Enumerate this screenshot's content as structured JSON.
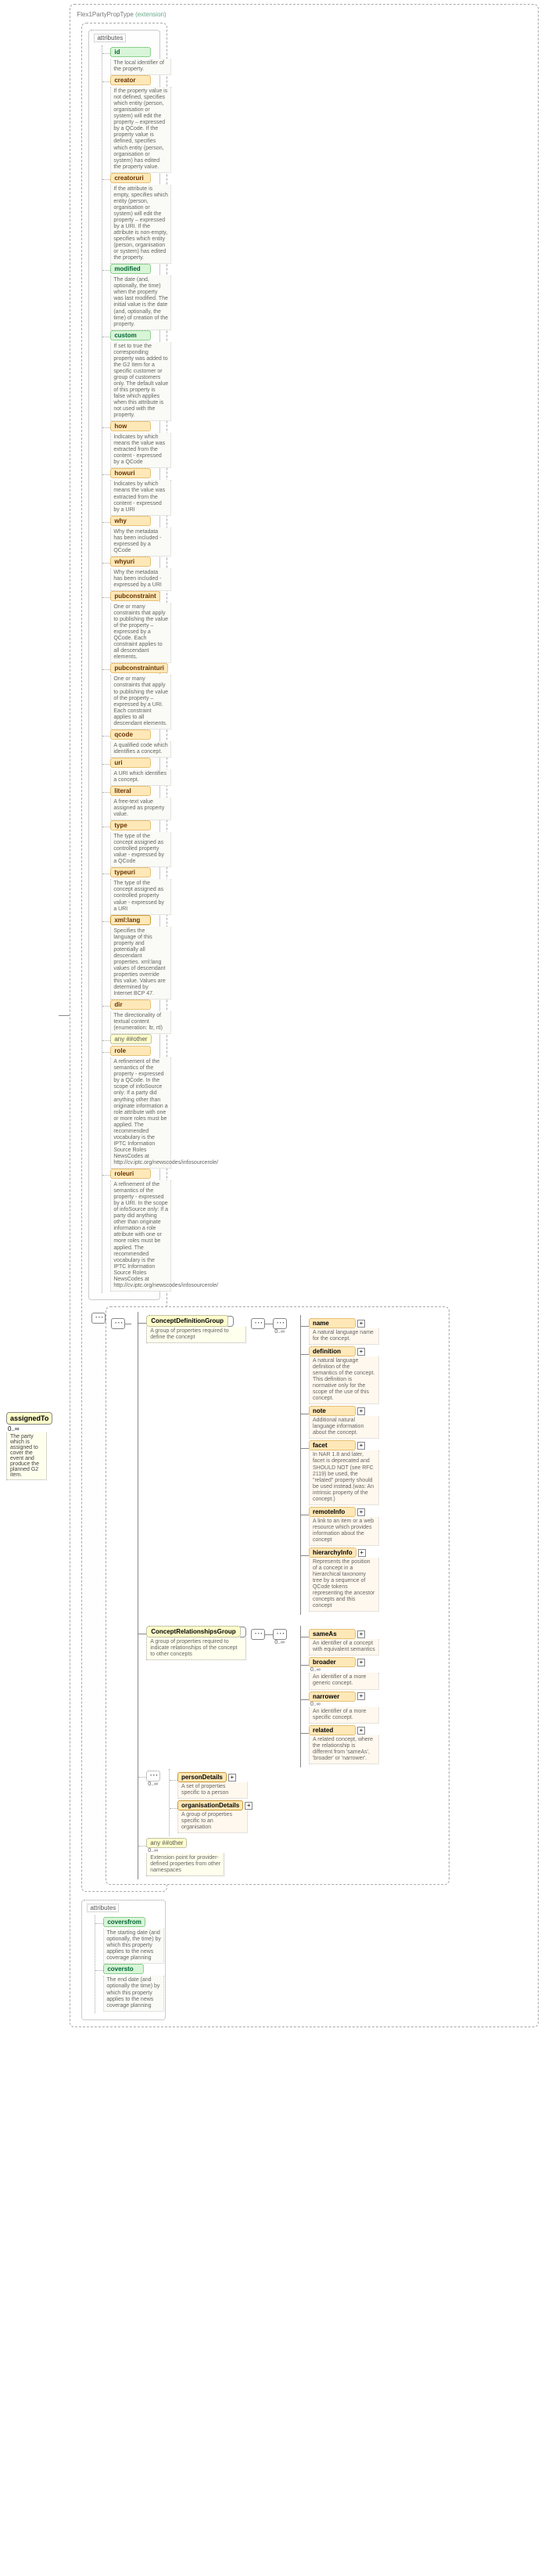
{
  "root": {
    "name": "assignedTo",
    "card": "0..∞",
    "desc": "The party which is assigned to cover the event and produce the planned G2 item.",
    "header": {
      "base": "Flex1PartyPropType",
      "ext": "(extension)"
    }
  },
  "attrs_label": "attributes",
  "attrs": [
    {
      "name": "id",
      "cls": "attr-green",
      "desc": "The local identifier of the property."
    },
    {
      "name": "creator",
      "cls": "attr-orange",
      "desc": "If the property value is not defined, specifies which entity (person, organisation or system) will edit the property – expressed by a QCode. If the property value is defined, specifies which entity (person, organisation or system) has edited the property value."
    },
    {
      "name": "creatoruri",
      "cls": "attr-orange",
      "desc": "If the attribute is empty, specifies which entity (person, organisation or system) will edit the property – expressed by a URI. If the attribute is non-empty, specifies which entity (person, organisation or system) has edited the property."
    },
    {
      "name": "modified",
      "cls": "attr-green",
      "desc": "The date (and, optionally, the time) when the property was last modified. The initial value is the date (and, optionally, the time) of creation of the property."
    },
    {
      "name": "custom",
      "cls": "attr-green",
      "desc": "If set to true the corresponding property was added to the G2 Item for a specific customer or group of customers only. The default value of this property is false which applies when this attribute is not used with the property."
    },
    {
      "name": "how",
      "cls": "attr-orange",
      "desc": "Indicates by which means the value was extracted from the content - expressed by a QCode"
    },
    {
      "name": "howuri",
      "cls": "attr-orange",
      "desc": "Indicates by which means the value was extracted from the content - expressed by a URI"
    },
    {
      "name": "why",
      "cls": "attr-orange",
      "desc": "Why the metadata has been included - expressed by a QCode"
    },
    {
      "name": "whyuri",
      "cls": "attr-orange",
      "desc": "Why the metadata has been included - expressed by a URI"
    },
    {
      "name": "pubconstraint",
      "cls": "attr-orange",
      "desc": "One or many constraints that apply to publishing the value of the property – expressed by a QCode. Each constraint applies to all descendant elements."
    },
    {
      "name": "pubconstrainturi",
      "cls": "attr-orange",
      "desc": "One or many constraints that apply to publishing the value of the property – expressed by a URI. Each constraint applies to all descendant elements."
    },
    {
      "name": "qcode",
      "cls": "attr-orange",
      "desc": "A qualified code which identifies a concept."
    },
    {
      "name": "uri",
      "cls": "attr-orange",
      "desc": "A URI which identifies a concept."
    },
    {
      "name": "literal",
      "cls": "attr-orange",
      "desc": "A free-text value assigned as property value."
    },
    {
      "name": "type",
      "cls": "attr-orange",
      "desc": "The type of the concept assigned as controlled property value - expressed by a QCode"
    },
    {
      "name": "typeuri",
      "cls": "attr-orange",
      "desc": "The type of the concept assigned as controlled property value - expressed by a URI"
    },
    {
      "name": "xml:lang",
      "cls": "attr-orange-solid",
      "desc": "Specifies the language of this property and potentially all descendant properties. xml:lang values of descendant properties override this value. Values are determined by Internet BCP 47."
    },
    {
      "name": "dir",
      "cls": "attr-orange",
      "desc": "The directionality of textual content (enumeration: ltr, rtl)"
    },
    {
      "name": "any ##other",
      "cls": "any",
      "desc": ""
    },
    {
      "name": "role",
      "cls": "attr-orange",
      "desc": "A refinement of the semantics of the property - expressed by a QCode. In the scope of infoSource only: If a party did anything other than originate information a role attribute with one or more roles must be applied. The recommended vocabulary is the IPTC Information Source Roles NewsCodes at http://cv.iptc.org/newscodes/infosourcerole/"
    },
    {
      "name": "roleuri",
      "cls": "attr-orange",
      "desc": "A refinement of the semantics of the property - expressed by a URI. In the scope of infoSource only: If a party did anything other than originate information a role attribute with one or more roles must be applied. The recommended vocabulary is the IPTC Information Source Roles NewsCodes at http://cv.iptc.org/newscodes/infosourcerole/"
    }
  ],
  "defGroup": {
    "name": "ConceptDefinitionGroup",
    "desc": "A group of properties required to define the concept",
    "card": "0..∞",
    "children": [
      {
        "name": "name",
        "desc": "A natural language name for the concept."
      },
      {
        "name": "definition",
        "desc": "A natural language definition of the semantics of the concept. This definition is normative only for the scope of the use of this concept."
      },
      {
        "name": "note",
        "desc": "Additional natural language information about the concept."
      },
      {
        "name": "facet",
        "desc": "In NAR 1.8 and later, facet is deprecated and SHOULD NOT (see RFC 2119) be used, the \"related\" property should be used instead.(was: An intrinsic property of the concept.)"
      },
      {
        "name": "remoteInfo",
        "desc": "A link to an item or a web resource which provides information about the concept"
      },
      {
        "name": "hierarchyInfo",
        "desc": "Represents the position of a concept in a hierarchical taxonomy tree by a sequence of QCode tokens representing the ancestor concepts and this concept"
      }
    ]
  },
  "relGroup": {
    "name": "ConceptRelationshipsGroup",
    "desc": "A group of properties required to indicate relationships of the concept to other concepts",
    "card": "0..∞",
    "children": [
      {
        "name": "sameAs",
        "desc": "An identifier of a concept with equivalent semantics"
      },
      {
        "name": "broader",
        "desc": "An identifier of a more generic concept.",
        "card": "0..∞"
      },
      {
        "name": "narrower",
        "desc": "An identifier of a more specific concept.",
        "card": "0..∞"
      },
      {
        "name": "related",
        "desc": "A related concept, where the relationship is different from 'sameAs', 'broader' or 'narrower'."
      }
    ]
  },
  "choice": {
    "card": "0..∞",
    "person": {
      "name": "personDetails",
      "desc": "A set of properties specific to a person"
    },
    "org": {
      "name": "organisationDetails",
      "desc": "A group of properties specific to an organisation"
    }
  },
  "anyOther": {
    "label": "any ##other",
    "card": "0..∞",
    "desc": "Extension point for provider-defined properties from other namespaces"
  },
  "attrs2_label": "attributes",
  "attrs2": [
    {
      "name": "coversfrom",
      "cls": "attr-green",
      "desc": "The starting date (and optionally, the time) by which this property applies to the news coverage planning"
    },
    {
      "name": "coversto",
      "cls": "attr-green",
      "desc": "The end date (and optionally the time) by which this property applies to the news coverage planning"
    }
  ]
}
